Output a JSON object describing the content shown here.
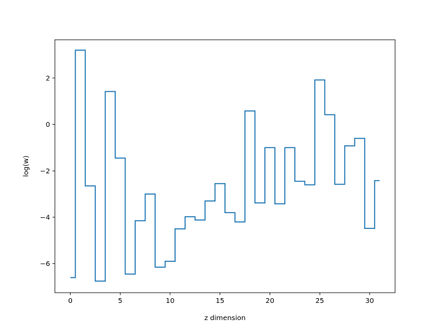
{
  "chart_data": {
    "type": "line",
    "drawstyle": "steps-mid",
    "title": "",
    "xlabel": "z dimension",
    "ylabel": "log(w)",
    "xlim": [
      -1.55,
      32.55
    ],
    "ylim": [
      -7.25,
      3.65
    ],
    "x_ticks": [
      0,
      5,
      10,
      15,
      20,
      25,
      30
    ],
    "y_ticks": [
      -6,
      -4,
      -2,
      0,
      2
    ],
    "grid": false,
    "legend": "none",
    "series": [
      {
        "color": "#1f77b4",
        "x": [
          0,
          1,
          2,
          3,
          4,
          5,
          6,
          7,
          8,
          9,
          10,
          11,
          12,
          13,
          14,
          15,
          16,
          17,
          18,
          19,
          20,
          21,
          22,
          23,
          24,
          25,
          26,
          27,
          28,
          29,
          30,
          31
        ],
        "values": [
          -6.6,
          3.2,
          -2.65,
          -6.75,
          1.42,
          -1.45,
          -6.45,
          -4.15,
          -3.0,
          -6.15,
          -5.9,
          -4.5,
          -3.98,
          -4.12,
          -3.3,
          -2.55,
          -3.8,
          -4.2,
          0.58,
          -3.38,
          -1.0,
          -3.42,
          -1.0,
          -2.45,
          -2.6,
          1.92,
          0.42,
          -2.58,
          -0.92,
          -0.6,
          -4.48,
          -2.42
        ]
      }
    ]
  }
}
